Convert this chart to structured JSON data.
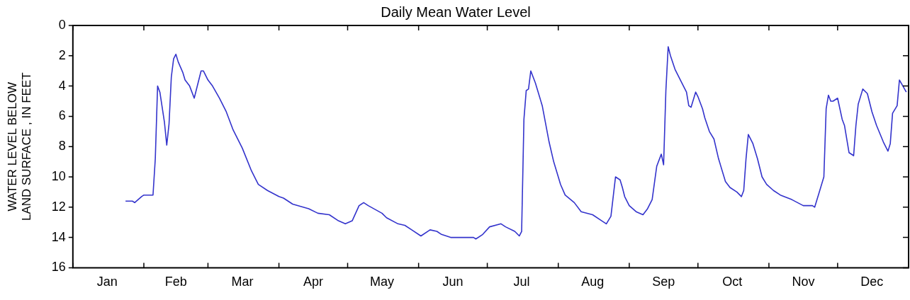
{
  "chart_data": {
    "type": "line",
    "title": "Daily Mean Water Level",
    "ylabel": "WATER LEVEL BELOW LAND SURFACE , IN FEET",
    "x": [
      "--01-24",
      "--01-27",
      "--01-28",
      "--01-31",
      "--02-01",
      "--02-05",
      "--02-06",
      "--02-07",
      "--02-08",
      "--02-10",
      "--02-11",
      "--02-12",
      "--02-13",
      "--02-14",
      "--02-15",
      "--02-16",
      "--02-18",
      "--02-19",
      "--02-21",
      "--02-23",
      "--02-26",
      "--02-27",
      "--03-01",
      "--03-03",
      "--03-06",
      "--03-09",
      "--03-12",
      "--03-16",
      "--03-20",
      "--03-23",
      "--03-27",
      "--04-01",
      "--04-03",
      "--04-07",
      "--04-14",
      "--04-18",
      "--04-23",
      "--04-27",
      "--04-30",
      "--05-03",
      "--05-06",
      "--05-08",
      "--05-10",
      "--05-16",
      "--05-18",
      "--05-23",
      "--05-26",
      "--05-29",
      "--06-02",
      "--06-06",
      "--06-09",
      "--06-11",
      "--06-15",
      "--06-25",
      "--06-26",
      "--06-29",
      "--07-02",
      "--07-07",
      "--07-09",
      "--07-13",
      "--07-15",
      "--07-16",
      "--07-17",
      "--07-18",
      "--07-19",
      "--07-20",
      "--07-22",
      "--07-25",
      "--07-28",
      "--07-30",
      "--08-02",
      "--08-04",
      "--08-08",
      "--08-11",
      "--08-16",
      "--08-20",
      "--08-22",
      "--08-24",
      "--08-26",
      "--08-28",
      "--08-29",
      "--08-30",
      "--09-01",
      "--09-04",
      "--09-07",
      "--09-09",
      "--09-11",
      "--09-13",
      "--09-15",
      "--09-16",
      "--09-17",
      "--09-18",
      "--09-19",
      "--09-21",
      "--09-24",
      "--09-26",
      "--09-27",
      "--09-28",
      "--09-30",
      "--10-01",
      "--10-03",
      "--10-04",
      "--10-06",
      "--10-08",
      "--10-10",
      "--10-13",
      "--10-15",
      "--10-18",
      "--10-20",
      "--10-21",
      "--10-22",
      "--10-23",
      "--10-25",
      "--10-27",
      "--10-29",
      "--10-31",
      "--11-03",
      "--11-06",
      "--11-11",
      "--11-16",
      "--11-20",
      "--11-21",
      "--11-23",
      "--11-25",
      "--11-26",
      "--11-27",
      "--11-28",
      "--11-29",
      "--12-01",
      "--12-03",
      "--12-04",
      "--12-06",
      "--12-08",
      "--12-09",
      "--12-10",
      "--12-12",
      "--12-14",
      "--12-16",
      "--12-18",
      "--12-21",
      "--12-23",
      "--12-24",
      "--12-25",
      "--12-27",
      "--12-28",
      "--12-31"
    ],
    "series": [
      {
        "color": "#3333cc",
        "values": [
          11.6,
          11.6,
          11.7,
          11.3,
          11.2,
          11.2,
          8.8,
          4.0,
          4.4,
          6.4,
          7.9,
          6.5,
          3.4,
          2.2,
          1.9,
          2.4,
          3.1,
          3.6,
          4.0,
          4.8,
          3.0,
          3.0,
          3.6,
          4.0,
          4.8,
          5.7,
          6.9,
          8.1,
          9.6,
          10.5,
          10.9,
          11.3,
          11.4,
          11.8,
          12.1,
          12.4,
          12.5,
          12.9,
          13.1,
          12.9,
          11.9,
          11.7,
          11.9,
          12.4,
          12.7,
          13.1,
          13.2,
          13.5,
          13.9,
          13.5,
          13.6,
          13.8,
          14.0,
          14.0,
          14.1,
          13.8,
          13.3,
          13.1,
          13.3,
          13.6,
          13.9,
          13.6,
          6.2,
          4.3,
          4.2,
          3.0,
          3.8,
          5.3,
          7.7,
          9.0,
          10.5,
          11.2,
          11.7,
          12.3,
          12.5,
          12.9,
          13.1,
          12.6,
          10.0,
          10.2,
          10.7,
          11.3,
          11.9,
          12.3,
          12.5,
          12.1,
          11.5,
          9.3,
          8.5,
          9.2,
          4.3,
          1.4,
          2.0,
          2.9,
          3.8,
          4.4,
          5.3,
          5.4,
          4.4,
          4.7,
          5.5,
          6.1,
          7.0,
          7.5,
          8.8,
          10.3,
          10.7,
          11.0,
          11.3,
          10.9,
          8.8,
          7.2,
          7.8,
          8.8,
          10.0,
          10.5,
          10.9,
          11.2,
          11.5,
          11.9,
          11.9,
          12.0,
          11.0,
          10.0,
          5.5,
          4.6,
          5.0,
          5.0,
          4.8,
          6.2,
          6.6,
          8.4,
          8.6,
          6.6,
          5.2,
          4.2,
          4.5,
          5.7,
          6.6,
          7.7,
          8.3,
          7.8,
          5.8,
          5.3,
          3.6,
          4.4
        ]
      }
    ],
    "xlim": [
      "--01-01",
      "--12-31"
    ],
    "xticks": [
      {
        "value": "--01-01",
        "label": null
      },
      {
        "value": "--01-16",
        "label": "Jan"
      },
      {
        "value": "--02-01",
        "label": null
      },
      {
        "value": "--02-15",
        "label": "Feb"
      },
      {
        "value": "--03-01",
        "label": null
      },
      {
        "value": "--03-16",
        "label": "Mar"
      },
      {
        "value": "--04-01",
        "label": null
      },
      {
        "value": "--04-16",
        "label": "Apr"
      },
      {
        "value": "--05-01",
        "label": null
      },
      {
        "value": "--05-16",
        "label": "May"
      },
      {
        "value": "--06-01",
        "label": null
      },
      {
        "value": "--06-16",
        "label": "Jun"
      },
      {
        "value": "--07-01",
        "label": null
      },
      {
        "value": "--07-16",
        "label": "Jul"
      },
      {
        "value": "--08-01",
        "label": null
      },
      {
        "value": "--08-16",
        "label": "Aug"
      },
      {
        "value": "--09-01",
        "label": null
      },
      {
        "value": "--09-16",
        "label": "Sep"
      },
      {
        "value": "--10-01",
        "label": null
      },
      {
        "value": "--10-16",
        "label": "Oct"
      },
      {
        "value": "--11-01",
        "label": null
      },
      {
        "value": "--11-16",
        "label": "Nov"
      },
      {
        "value": "--12-01",
        "label": null
      },
      {
        "value": "--12-16",
        "label": "Dec"
      }
    ],
    "ylim": [
      16,
      0
    ],
    "yticks": [
      0,
      2,
      4,
      6,
      8,
      10,
      12,
      14,
      16
    ],
    "grid": false,
    "legend": false,
    "marker": "none",
    "line_style": "solid"
  }
}
